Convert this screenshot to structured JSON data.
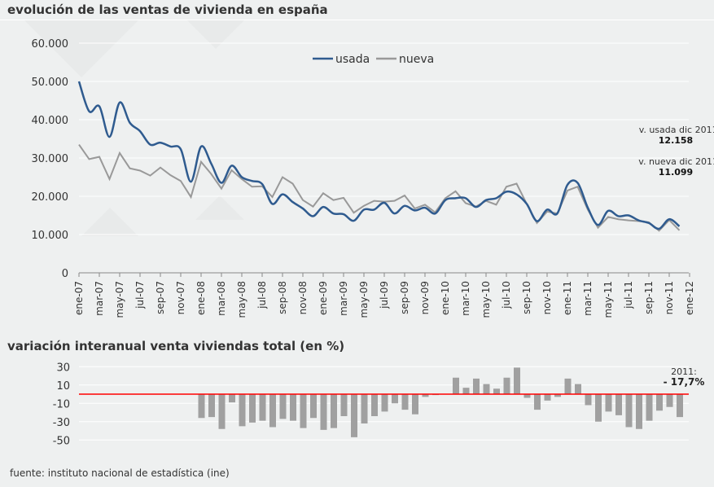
{
  "chart_data": [
    {
      "type": "line",
      "title": "evolución de las ventas de vivienda en españa",
      "ylim": [
        0,
        60000
      ],
      "yticks": [
        "0",
        "10.000",
        "20.000",
        "30.000",
        "40.000",
        "50.000",
        "60.000"
      ],
      "xtick_labels": [
        "ene-07",
        "mar-07",
        "may-07",
        "jul-07",
        "sep-07",
        "nov-07",
        "ene-08",
        "mar-08",
        "may-08",
        "jul-08",
        "sep-08",
        "nov-08",
        "ene-09",
        "mar-09",
        "may-09",
        "jul-09",
        "sep-09",
        "nov-09",
        "ene-10",
        "mar-10",
        "may-10",
        "jul-10",
        "sep-10",
        "nov-10",
        "ene-11",
        "mar-11",
        "may-11",
        "jul-11",
        "sep-11",
        "nov-11",
        "ene-12"
      ],
      "x_start": "ene-07",
      "x_end": "dic-11",
      "grid": true,
      "legend": "top-center",
      "series": [
        {
          "name": "usada",
          "color": "#2f5b8f",
          "values": [
            50000,
            42200,
            43500,
            35500,
            44500,
            39200,
            37000,
            33500,
            34000,
            33000,
            32300,
            23800,
            33000,
            28500,
            23500,
            28000,
            25000,
            24000,
            23200,
            18000,
            20500,
            18500,
            16800,
            14800,
            17200,
            15500,
            15300,
            13600,
            16500,
            16500,
            18300,
            15500,
            17500,
            16300,
            17000,
            15500,
            19000,
            19500,
            19500,
            17200,
            19000,
            19500,
            21200,
            20500,
            18000,
            13500,
            16500,
            15500,
            23000,
            23500,
            17000,
            12500,
            16200,
            14800,
            15000,
            13700,
            13000,
            11500,
            14000,
            12158
          ]
        },
        {
          "name": "nueva",
          "color": "#999999",
          "values": [
            33500,
            29700,
            30300,
            24500,
            31300,
            27300,
            26700,
            25400,
            27500,
            25500,
            24000,
            19800,
            29000,
            25800,
            22000,
            26800,
            24500,
            22500,
            22600,
            19800,
            25000,
            23300,
            19000,
            17300,
            20800,
            19000,
            19600,
            15700,
            17500,
            18800,
            18600,
            18800,
            20200,
            16800,
            17800,
            15800,
            19500,
            21300,
            18200,
            17300,
            18800,
            17800,
            22500,
            23300,
            18000,
            13000,
            16000,
            15500,
            21500,
            22500,
            16500,
            11800,
            14600,
            14000,
            13700,
            13500,
            13200,
            11000,
            13800,
            11099
          ]
        }
      ],
      "annotations": [
        {
          "label": "v. usada dic 2011:",
          "value": "12.158"
        },
        {
          "label": "v. nueva dic 2011:",
          "value": "11.099"
        }
      ]
    },
    {
      "type": "bar",
      "title": "variación interanual venta viviendas total (en %)",
      "ylim": [
        -60,
        30
      ],
      "yticks": [
        "30",
        "10",
        "-10",
        "-30",
        "-50"
      ],
      "x_start": "ene-08",
      "x_end": "dic-11",
      "bar_color": "#a0a0a0",
      "zero_line_color": "#ff0000",
      "values": [
        -26,
        -25,
        -38,
        -9,
        -35,
        -31,
        -29,
        -36,
        -27,
        -29,
        -37,
        -26,
        -39,
        -37,
        -24,
        -47,
        -32,
        -24,
        -19,
        -10,
        -17,
        -22,
        -3,
        -1,
        0,
        18,
        7,
        17,
        11,
        6,
        18,
        29,
        -4,
        -17,
        -7,
        -3,
        17,
        11,
        -12,
        -30,
        -19,
        -23,
        -36,
        -38,
        -29,
        -18,
        -14,
        -25
      ],
      "annotation": {
        "label": "2011:",
        "value": "- 17,7%"
      }
    }
  ],
  "source": "fuente: instituto nacional de estadística (ine)"
}
